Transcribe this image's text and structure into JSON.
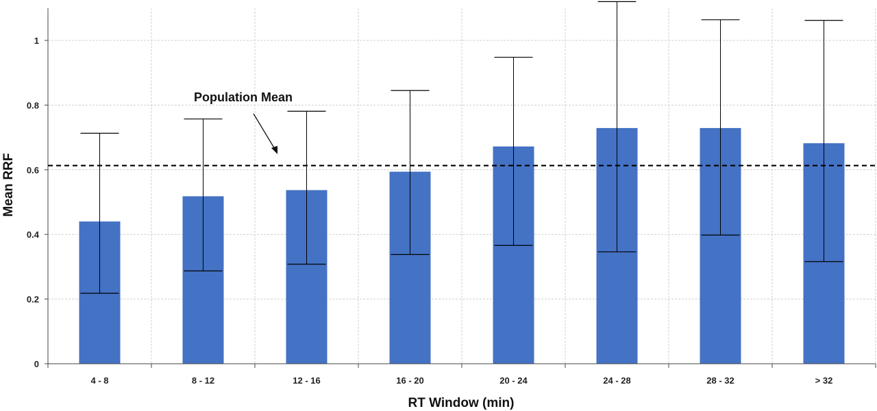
{
  "chart_data": {
    "type": "bar",
    "categories": [
      "4 - 8",
      "8 - 12",
      "12 - 16",
      "16 - 20",
      "20 - 24",
      "24 - 28",
      "28 - 32",
      "> 32"
    ],
    "values": [
      0.44,
      0.518,
      0.537,
      0.594,
      0.672,
      0.729,
      0.729,
      0.682
    ],
    "error_low": [
      0.218,
      0.287,
      0.308,
      0.338,
      0.366,
      0.346,
      0.398,
      0.316
    ],
    "error_high": [
      0.713,
      0.757,
      0.781,
      0.845,
      0.948,
      1.12,
      1.064,
      1.062
    ],
    "reference_line": {
      "label": "Population Mean",
      "value": 0.613,
      "style": "dashed"
    },
    "title": "",
    "xlabel": "RT Window (min)",
    "ylabel": "Mean RRF",
    "ylim": [
      0,
      1.1
    ],
    "yticks": [
      "0",
      "0.2",
      "0.4",
      "0.6",
      "0.8",
      "1"
    ],
    "ytick_values": [
      0,
      0.2,
      0.4,
      0.6,
      0.8,
      1
    ],
    "grid": true,
    "bar_color": "#4472C4",
    "legend": "none"
  }
}
